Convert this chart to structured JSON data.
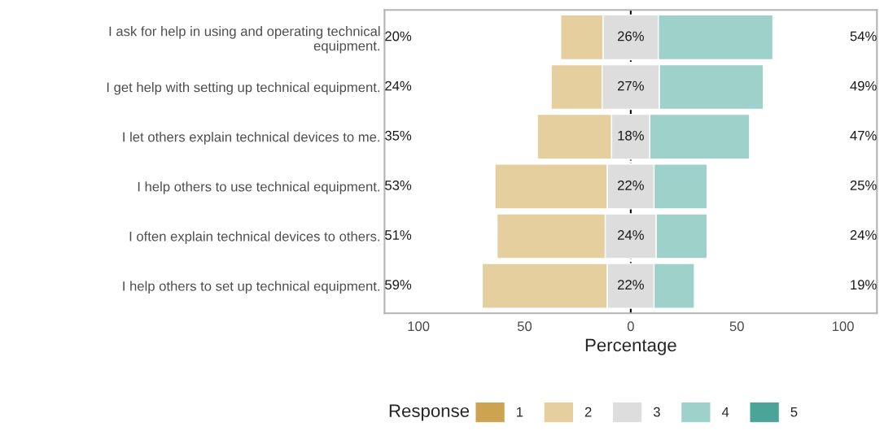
{
  "chart_data": {
    "type": "bar",
    "orientation": "horizontal",
    "xlabel": "Percentage",
    "legend_title": "Response",
    "legend": "bottom",
    "categories": [
      "I ask for help in using and operating technical\nequipment.",
      "I get help with setting up technical equipment.",
      "I let others explain technical devices to me.",
      "I help others to use technical equipment.",
      "I often explain technical devices to others.",
      "I help others to set up technical equipment."
    ],
    "series": [
      {
        "name": "1",
        "color": "#cca351",
        "values": [
          null,
          null,
          null,
          null,
          null,
          null
        ]
      },
      {
        "name": "2",
        "color": "#e5cf9e",
        "values": [
          20,
          24,
          35,
          53,
          51,
          59
        ],
        "base": [
          -33,
          -37.5,
          -44,
          -64,
          -63,
          -70
        ],
        "value_labels": [
          "20%",
          "24%",
          "35%",
          "53%",
          "51%",
          "59%"
        ]
      },
      {
        "name": "3",
        "color": "#dddddd",
        "values": [
          26,
          27,
          18,
          22,
          24,
          22
        ],
        "base": [
          -13,
          -13.5,
          -9,
          -11,
          -12,
          -11
        ],
        "value_labels": [
          "26%",
          "27%",
          "18%",
          "22%",
          "24%",
          "22%"
        ]
      },
      {
        "name": "4",
        "color": "#9fd1cb",
        "values": [
          54,
          49,
          47,
          25,
          24,
          19
        ],
        "base": [
          13,
          13.5,
          9,
          11,
          12,
          11
        ],
        "value_labels": [
          "54%",
          "49%",
          "47%",
          "25%",
          "24%",
          "19%"
        ]
      },
      {
        "name": "5",
        "color": "#4aa598",
        "values": [
          null,
          null,
          null,
          null,
          null,
          null
        ]
      }
    ],
    "xlim": [
      -116,
      116
    ],
    "xticks": [
      {
        "value": -100,
        "label": "100"
      },
      {
        "value": -50,
        "label": "50"
      },
      0,
      50,
      100
    ],
    "ref_lines": [
      {
        "axis": "x",
        "value": 0,
        "color": "#000000",
        "line_style": "dashed"
      }
    ]
  }
}
